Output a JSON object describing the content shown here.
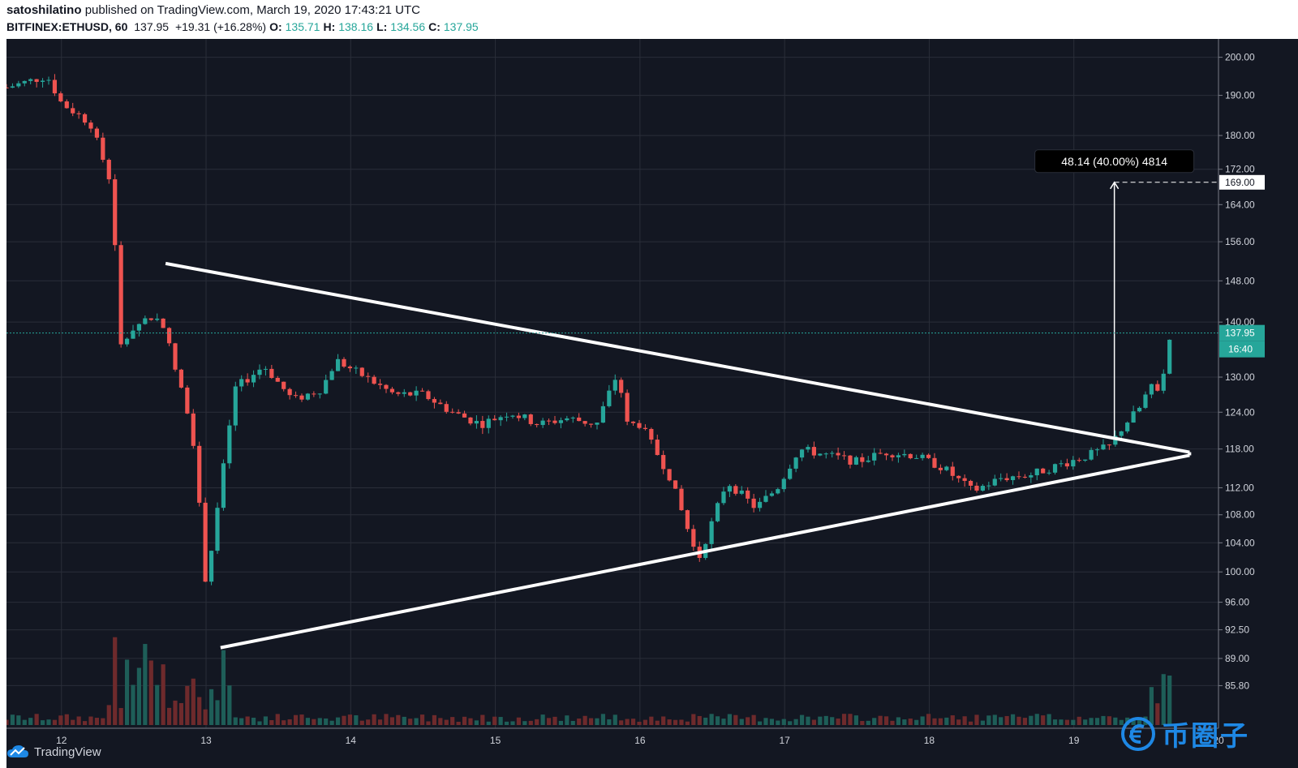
{
  "header": {
    "author": "satoshilatino",
    "published_text": "published on TradingView.com, March 19, 2020 17:43:21 UTC",
    "symbol": "BITFINEX:ETHUSD, 60",
    "last": "137.95",
    "change": "+19.31 (+16.28%)",
    "o_label": "O:",
    "o_value": "135.71",
    "h_label": "H:",
    "h_value": "138.16",
    "l_label": "L:",
    "l_value": "134.56",
    "c_label": "C:",
    "c_value": "137.95"
  },
  "footer": {
    "brand": "TradingView"
  },
  "watermark": {
    "text": "币圈子"
  },
  "colors": {
    "background": "#131722",
    "up": "#26a69a",
    "down": "#ef5350",
    "up_volume": "#1e5e58",
    "down_volume": "#6e2a2c",
    "line": "#ffffff",
    "grid": "#2a2e39",
    "last_price_line": "#26a69a"
  },
  "chart_data": {
    "type": "candlestick",
    "symbol": "BITFINEX:ETHUSD",
    "interval": "60",
    "y_scale": "log",
    "ylim": [
      85,
      205
    ],
    "xlim": [
      11.62,
      20.0
    ],
    "x_ticks": [
      {
        "x": 12,
        "label": "12"
      },
      {
        "x": 13,
        "label": "13"
      },
      {
        "x": 14,
        "label": "14"
      },
      {
        "x": 15,
        "label": "15"
      },
      {
        "x": 16,
        "label": "16"
      },
      {
        "x": 17,
        "label": "17"
      },
      {
        "x": 18,
        "label": "18"
      },
      {
        "x": 19,
        "label": "19"
      },
      {
        "x": 20,
        "label": "20"
      }
    ],
    "y_ticks": [
      {
        "value": 200,
        "label": "200.00"
      },
      {
        "value": 190,
        "label": "190.00"
      },
      {
        "value": 180,
        "label": "180.00"
      },
      {
        "value": 172,
        "label": "172.00"
      },
      {
        "value": 164,
        "label": "164.00"
      },
      {
        "value": 156,
        "label": "156.00"
      },
      {
        "value": 148,
        "label": "148.00"
      },
      {
        "value": 140,
        "label": "140.00"
      },
      {
        "value": 130,
        "label": "130.00"
      },
      {
        "value": 124,
        "label": "124.00"
      },
      {
        "value": 118,
        "label": "118.00"
      },
      {
        "value": 112,
        "label": "112.00"
      },
      {
        "value": 108,
        "label": "108.00"
      },
      {
        "value": 104,
        "label": "104.00"
      },
      {
        "value": 100,
        "label": "100.00"
      },
      {
        "value": 96,
        "label": "96.00"
      },
      {
        "value": 92.5,
        "label": "92.50"
      },
      {
        "value": 89,
        "label": "89.00"
      },
      {
        "value": 85.8,
        "label": "85.80"
      }
    ],
    "price_path": [
      [
        11.62,
        192
      ],
      [
        11.9,
        195
      ],
      [
        12.0,
        188
      ],
      [
        12.2,
        183
      ],
      [
        12.35,
        168
      ],
      [
        12.4,
        135
      ],
      [
        12.5,
        139
      ],
      [
        12.6,
        141
      ],
      [
        12.7,
        140
      ],
      [
        12.8,
        130
      ],
      [
        12.9,
        122
      ],
      [
        13.0,
        98
      ],
      [
        13.1,
        112
      ],
      [
        13.2,
        128
      ],
      [
        13.4,
        132
      ],
      [
        13.6,
        126
      ],
      [
        13.8,
        128
      ],
      [
        13.9,
        133
      ],
      [
        14.1,
        130
      ],
      [
        14.3,
        127
      ],
      [
        14.5,
        127
      ],
      [
        14.7,
        124
      ],
      [
        14.9,
        122
      ],
      [
        15.1,
        124
      ],
      [
        15.3,
        122
      ],
      [
        15.5,
        123
      ],
      [
        15.7,
        122
      ],
      [
        15.85,
        131
      ],
      [
        15.9,
        122
      ],
      [
        16.0,
        122
      ],
      [
        16.2,
        114
      ],
      [
        16.4,
        101.5
      ],
      [
        16.5,
        107
      ],
      [
        16.6,
        113
      ],
      [
        16.8,
        109
      ],
      [
        16.95,
        112
      ],
      [
        17.1,
        118
      ],
      [
        17.3,
        117
      ],
      [
        17.5,
        116
      ],
      [
        17.7,
        117.5
      ],
      [
        17.9,
        117
      ],
      [
        18.1,
        115
      ],
      [
        18.3,
        111.5
      ],
      [
        18.5,
        113.5
      ],
      [
        18.7,
        114
      ],
      [
        18.9,
        115.5
      ],
      [
        19.1,
        117
      ],
      [
        19.25,
        118.5
      ],
      [
        19.35,
        122
      ],
      [
        19.45,
        124.5
      ],
      [
        19.52,
        128
      ],
      [
        19.6,
        128.5
      ],
      [
        19.67,
        137.95
      ]
    ],
    "annotations": {
      "triangle_upper": [
        [
          12.72,
          151.5
        ],
        [
          19.8,
          117.5
        ]
      ],
      "triangle_lower": [
        [
          13.1,
          90.3
        ],
        [
          19.8,
          117.0
        ]
      ],
      "projection_arrow": {
        "x": 19.28,
        "from": 120.0,
        "to": 169.0
      },
      "target_line": {
        "y": 169.0,
        "label": "169.00"
      },
      "measure_label": "48.14 (40.00%) 4814",
      "last_price": {
        "value": 137.95,
        "label": "137.95",
        "countdown": "16:40"
      }
    }
  }
}
